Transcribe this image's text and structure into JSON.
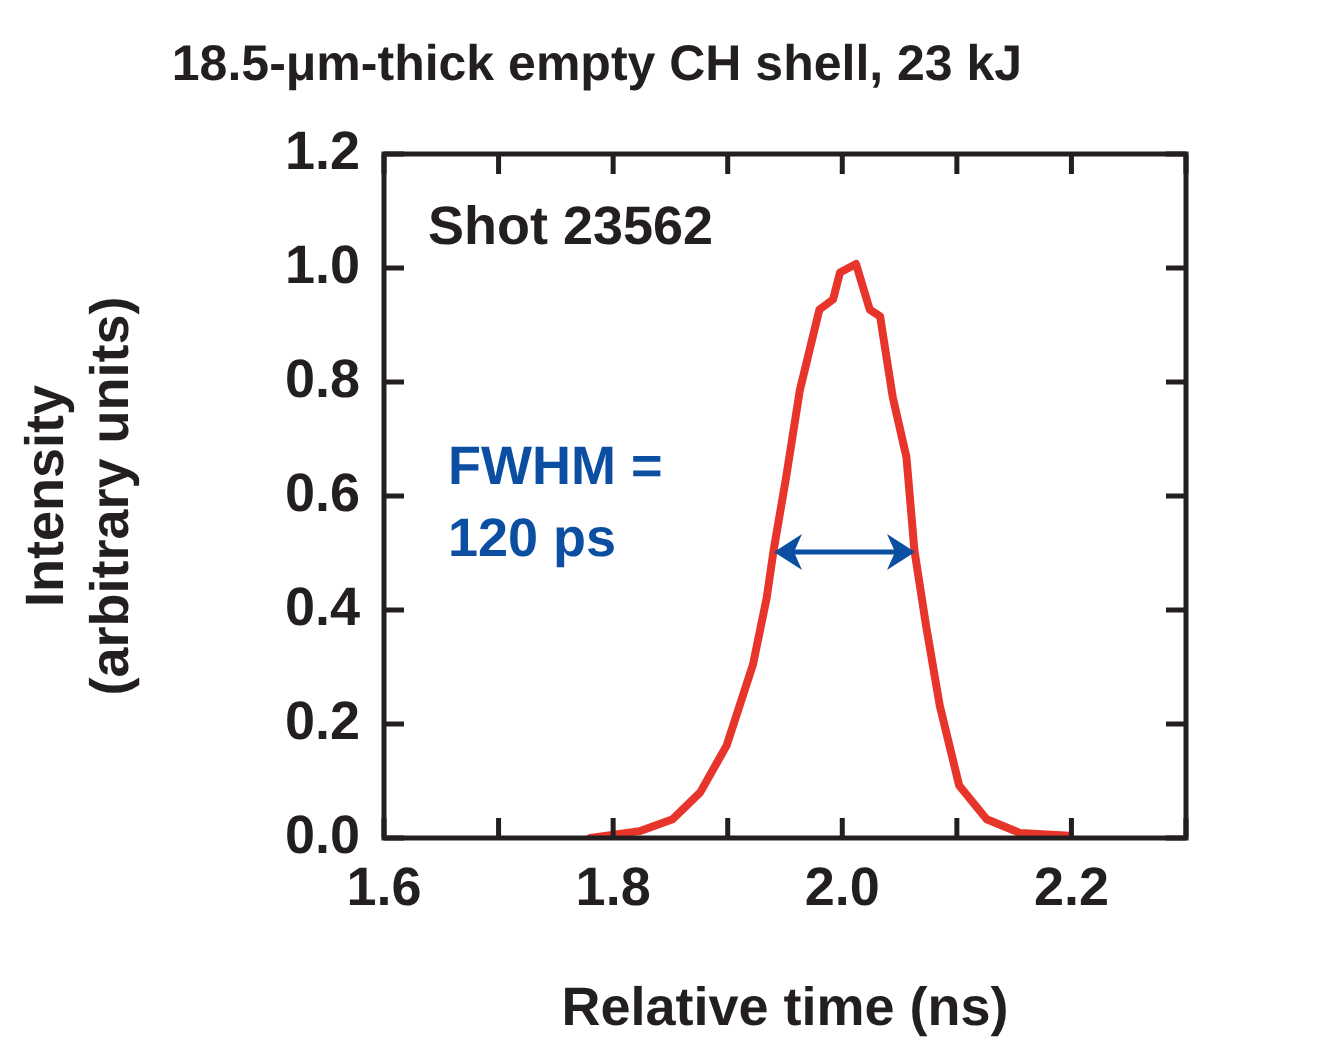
{
  "chart_data": {
    "type": "line",
    "title": "18.5-μm-thick empty CH shell, 23 kJ",
    "xlabel": "Relative time (ns)",
    "ylabel": "Intensity (arbitrary units)",
    "annotations": [
      "Shot 23562",
      "FWHM = 120 ps"
    ],
    "x": [
      1.78,
      1.823,
      1.852,
      1.876,
      1.899,
      1.922,
      1.934,
      1.94,
      1.951,
      1.963,
      1.98,
      1.992,
      1.998,
      2.012,
      2.024,
      2.033,
      2.044,
      2.056,
      2.063,
      2.073,
      2.085,
      2.102,
      2.126,
      2.155,
      2.198
    ],
    "values": [
      0,
      0.012,
      0.033,
      0.08,
      0.162,
      0.304,
      0.421,
      0.504,
      0.633,
      0.786,
      0.927,
      0.945,
      0.992,
      1.007,
      0.927,
      0.915,
      0.774,
      0.668,
      0.504,
      0.374,
      0.233,
      0.092,
      0.033,
      0.009,
      0.004
    ],
    "color": "#e8352c",
    "xlim": [
      1.6,
      2.3
    ],
    "xticks": [
      1.6,
      {
        "value": 1.7,
        "label": null
      },
      1.8,
      {
        "value": 1.9,
        "label": null
      },
      {
        "value": 2,
        "label": "2.0"
      },
      {
        "value": 2.1,
        "label": null
      },
      2.2,
      {
        "value": 2.3,
        "label": null
      }
    ],
    "ylim": [
      0,
      1.2
    ],
    "yticks": [
      {
        "value": 0,
        "label": "0.0"
      },
      0.2,
      0.4,
      0.6,
      0.8,
      {
        "value": 1,
        "label": "1.0"
      },
      1.2
    ]
  }
}
